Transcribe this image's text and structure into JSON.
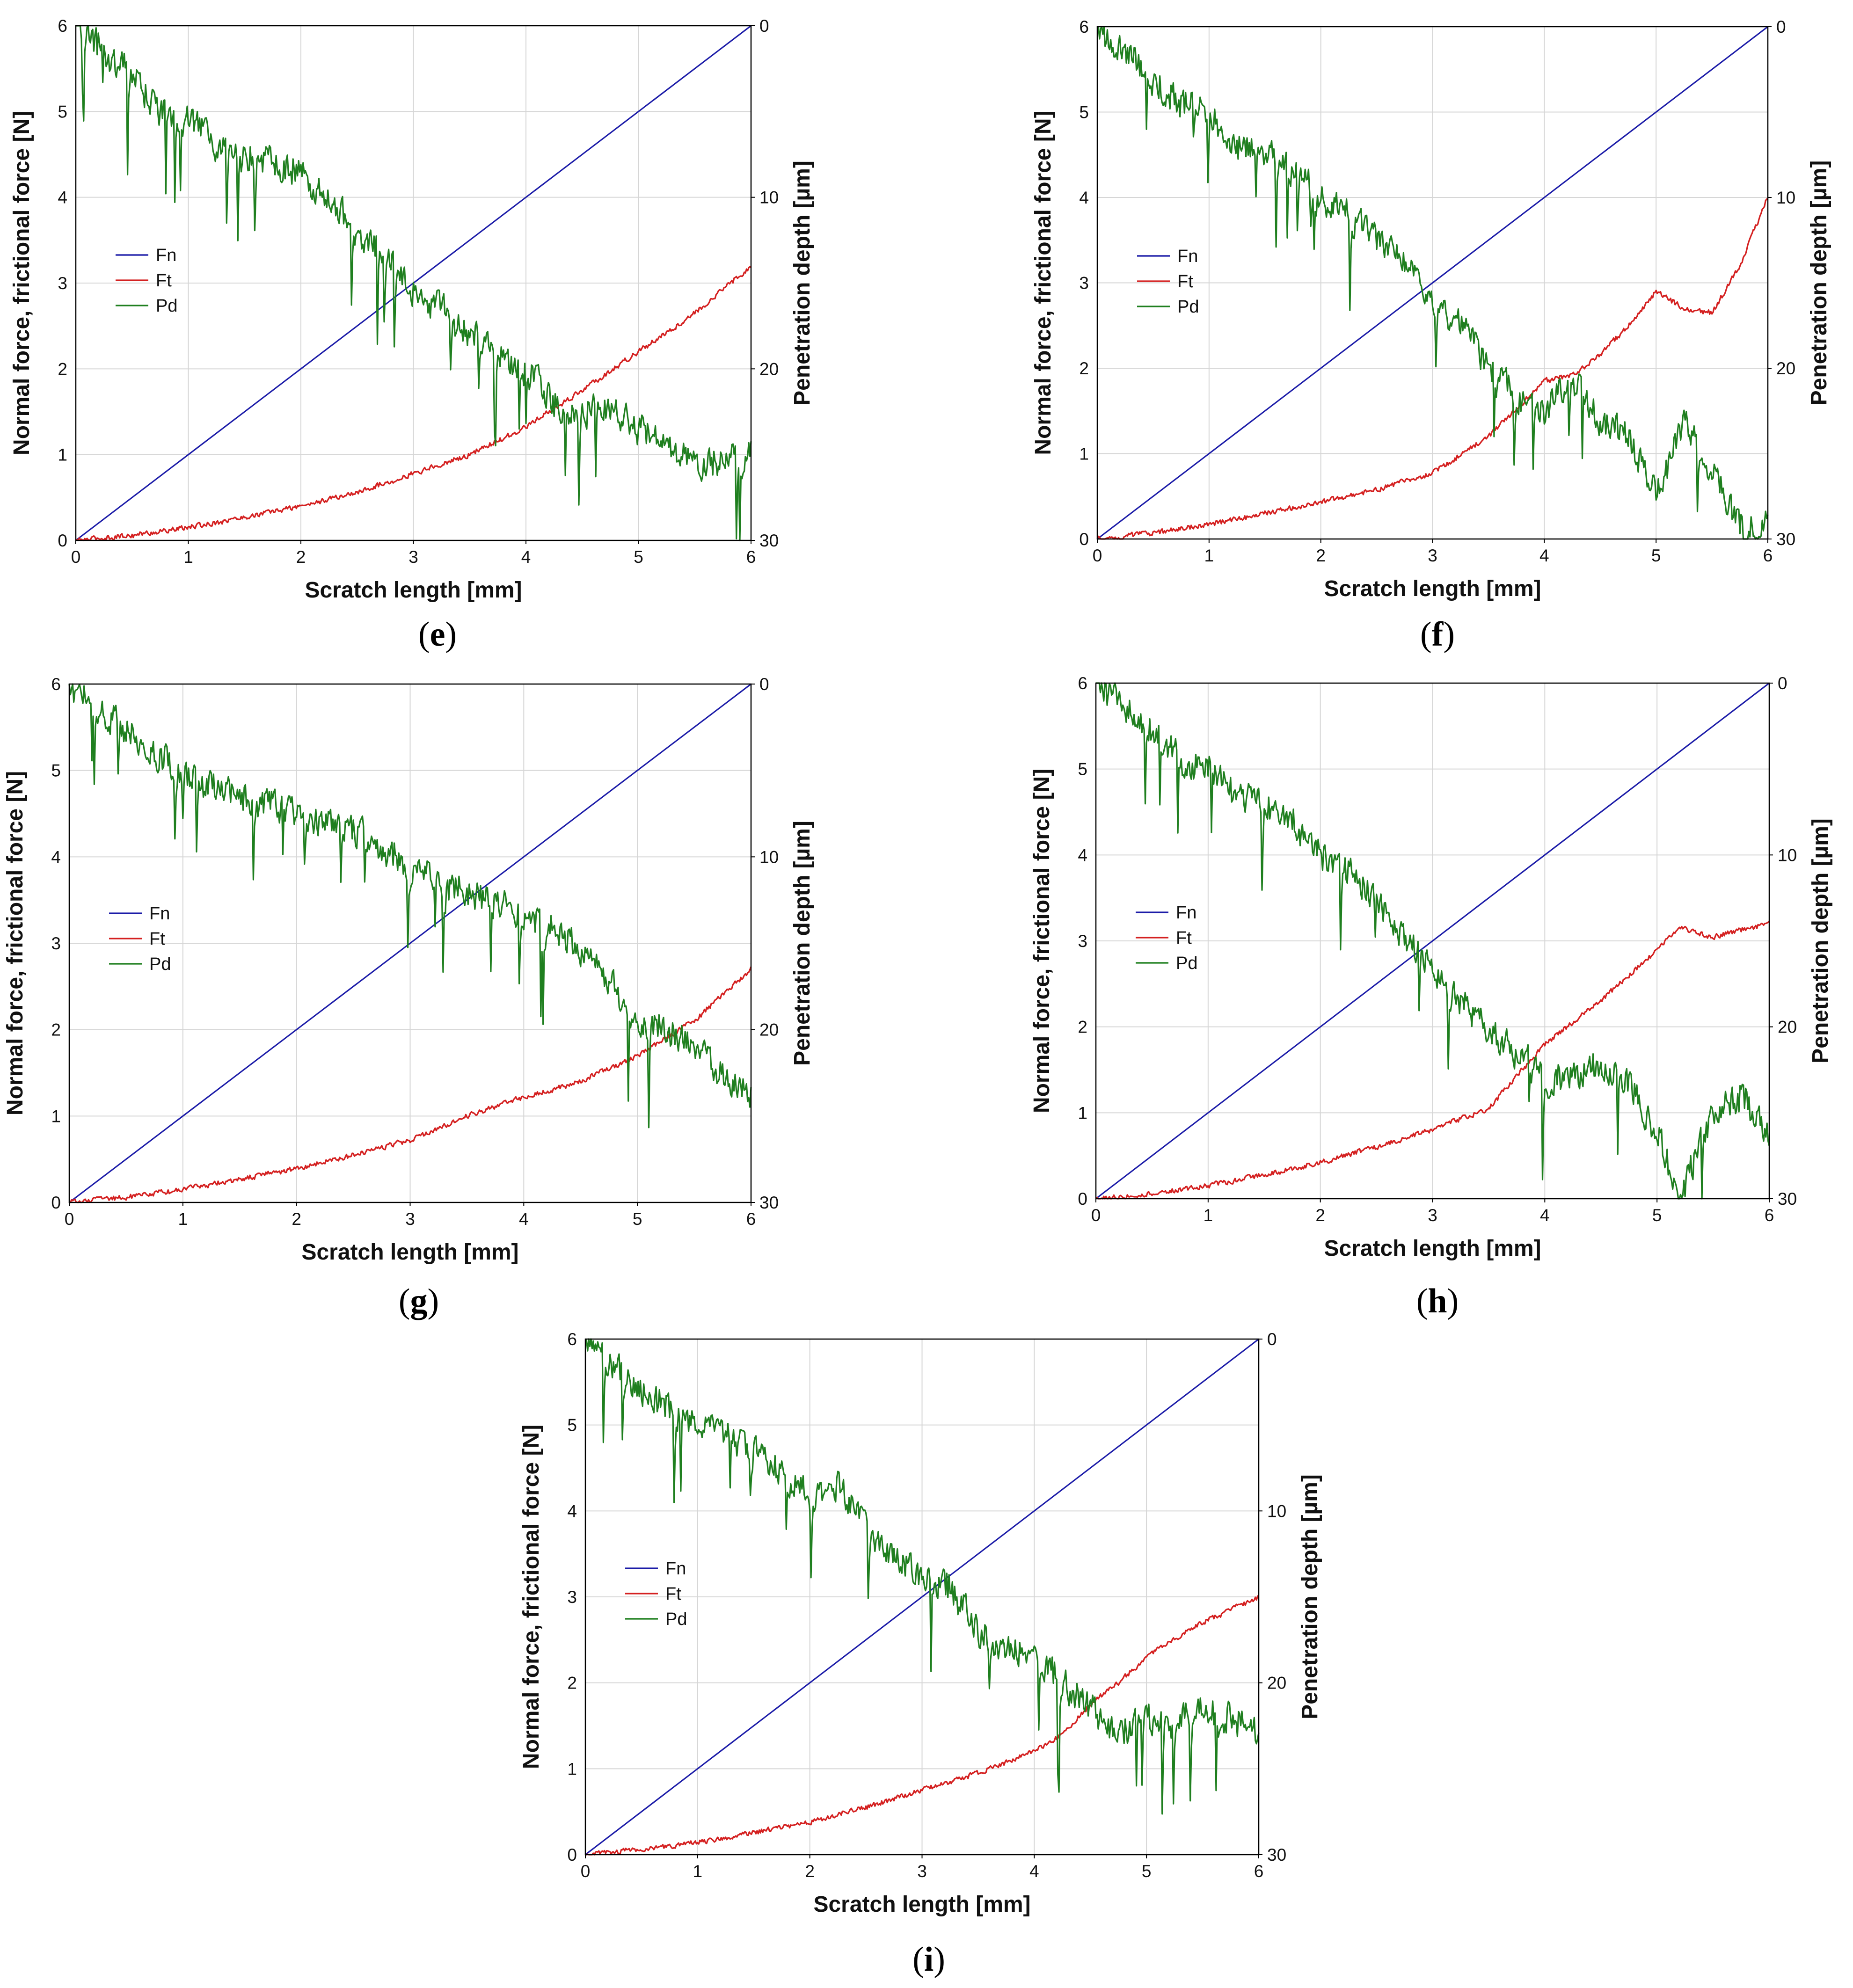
{
  "figure_panels": [
    "e",
    "f",
    "g",
    "h",
    "i"
  ],
  "colors": {
    "Fn": "#1c1ca8",
    "Ft": "#d42020",
    "Pd": "#1f7f1f",
    "grid": "#d6d6d6",
    "axis": "#000000"
  },
  "chart_data": [
    {
      "panel": "e",
      "caption": "e",
      "type": "line",
      "title": "",
      "xlabel": "Scratch length [mm]",
      "ylabel": "Normal force, frictional force [N]",
      "ylabel_right": "Penetration depth [µm]",
      "xlim": [
        0,
        6
      ],
      "ylim": [
        0,
        6
      ],
      "ylim_right": [
        0,
        30
      ],
      "right_axis_inverted": true,
      "xticks": [
        "0",
        "1",
        "2",
        "3",
        "4",
        "5",
        "6"
      ],
      "yticks": [
        "0",
        "1",
        "2",
        "3",
        "4",
        "5",
        "6"
      ],
      "yticks_right": [
        "0",
        "10",
        "20",
        "30"
      ],
      "grid": true,
      "legend_position": "middle-left",
      "legend": [
        "Fn",
        "Ft",
        "Pd"
      ],
      "series": [
        {
          "name": "Fn",
          "axis": "left",
          "x": [
            0,
            6
          ],
          "values": [
            0,
            6
          ]
        },
        {
          "name": "Ft",
          "axis": "left",
          "x": [
            0,
            0.5,
            1,
            1.5,
            2,
            2.5,
            3,
            3.5,
            4,
            4.5,
            5,
            5.5,
            6
          ],
          "values": [
            0,
            0.06,
            0.15,
            0.27,
            0.4,
            0.56,
            0.78,
            1.0,
            1.32,
            1.75,
            2.2,
            2.65,
            3.2
          ]
        },
        {
          "name": "Pd",
          "axis": "right",
          "x": [
            0,
            0.25,
            0.5,
            0.75,
            1,
            1.25,
            1.5,
            1.75,
            2,
            2.25,
            2.5,
            2.75,
            3,
            3.25,
            3.5,
            3.75,
            4,
            4.25,
            4.5,
            4.75,
            5,
            5.25,
            5.5,
            5.75,
            6
          ],
          "values": [
            0,
            1.5,
            3,
            5,
            5.5,
            7,
            7.5,
            8,
            8.5,
            10,
            12,
            13.5,
            15.5,
            16.5,
            18,
            19,
            20,
            22,
            22.5,
            22,
            23.5,
            24.5,
            25.5,
            25.5,
            25
          ]
        }
      ]
    },
    {
      "panel": "f",
      "caption": "f",
      "type": "line",
      "title": "",
      "xlabel": "Scratch length [mm]",
      "ylabel": "Normal force, frictional force [N]",
      "ylabel_right": "Penetration depth [µm]",
      "xlim": [
        0,
        6
      ],
      "ylim": [
        0,
        6
      ],
      "ylim_right": [
        0,
        30
      ],
      "right_axis_inverted": true,
      "xticks": [
        "0",
        "1",
        "2",
        "3",
        "4",
        "5",
        "6"
      ],
      "yticks": [
        "0",
        "1",
        "2",
        "3",
        "4",
        "5",
        "6"
      ],
      "yticks_right": [
        "0",
        "10",
        "20",
        "30"
      ],
      "grid": true,
      "legend_position": "middle-left",
      "legend": [
        "Fn",
        "Ft",
        "Pd"
      ],
      "series": [
        {
          "name": "Fn",
          "axis": "left",
          "x": [
            0,
            6
          ],
          "values": [
            0,
            6
          ]
        },
        {
          "name": "Ft",
          "axis": "left",
          "x": [
            0,
            0.5,
            1,
            1.5,
            2,
            2.5,
            3,
            3.5,
            4,
            4.25,
            4.5,
            4.75,
            5,
            5.25,
            5.5,
            5.75,
            6
          ],
          "values": [
            0,
            0.07,
            0.17,
            0.3,
            0.43,
            0.58,
            0.77,
            1.2,
            1.85,
            1.92,
            2.15,
            2.5,
            2.9,
            2.7,
            2.65,
            3.2,
            4.0
          ]
        },
        {
          "name": "Pd",
          "axis": "right",
          "x": [
            0,
            0.25,
            0.5,
            0.75,
            1,
            1.25,
            1.5,
            1.75,
            2,
            2.25,
            2.5,
            2.75,
            3,
            3.25,
            3.5,
            3.75,
            4,
            4.25,
            4.5,
            4.75,
            5,
            5.25,
            5.5,
            5.75,
            6
          ],
          "values": [
            0,
            1.5,
            3,
            4.5,
            5,
            7,
            7.5,
            8.5,
            10,
            11,
            12.5,
            14,
            16,
            17.5,
            20,
            21.5,
            22.5,
            20.5,
            23,
            24,
            27.5,
            23,
            26,
            29.5,
            29
          ]
        }
      ]
    },
    {
      "panel": "g",
      "caption": "g",
      "type": "line",
      "title": "",
      "xlabel": "Scratch length [mm]",
      "ylabel": "Normal force, frictional force [N]",
      "ylabel_right": "Penetration depth [µm]",
      "xlim": [
        0,
        6
      ],
      "ylim": [
        0,
        6
      ],
      "ylim_right": [
        0,
        30
      ],
      "right_axis_inverted": true,
      "xticks": [
        "0",
        "1",
        "2",
        "3",
        "4",
        "5",
        "6"
      ],
      "yticks": [
        "0",
        "1",
        "2",
        "3",
        "4",
        "5",
        "6"
      ],
      "yticks_right": [
        "0",
        "10",
        "20",
        "30"
      ],
      "grid": true,
      "legend_position": "middle-left",
      "legend": [
        "Fn",
        "Ft",
        "Pd"
      ],
      "series": [
        {
          "name": "Fn",
          "axis": "left",
          "x": [
            0,
            6
          ],
          "values": [
            0,
            6
          ]
        },
        {
          "name": "Ft",
          "axis": "left",
          "x": [
            0,
            0.5,
            1,
            1.5,
            2,
            2.5,
            3,
            3.5,
            4,
            4.5,
            5,
            5.25,
            5.5,
            5.75,
            6
          ],
          "values": [
            0,
            0.06,
            0.15,
            0.27,
            0.39,
            0.55,
            0.72,
            1.0,
            1.22,
            1.4,
            1.7,
            1.9,
            2.1,
            2.4,
            2.7
          ]
        },
        {
          "name": "Pd",
          "axis": "right",
          "x": [
            0,
            0.25,
            0.5,
            0.75,
            1,
            1.25,
            1.5,
            1.75,
            2,
            2.25,
            2.5,
            2.75,
            3,
            3.25,
            3.5,
            3.75,
            4,
            4.25,
            4.5,
            4.75,
            5,
            5.25,
            5.5,
            5.75,
            6
          ],
          "values": [
            0,
            1.5,
            2.5,
            4,
            5,
            6,
            6.5,
            7,
            7.5,
            8,
            8.5,
            9.5,
            10.5,
            11.5,
            12,
            12.5,
            13.5,
            14,
            15.5,
            17,
            19.5,
            20,
            21,
            22.5,
            24
          ]
        }
      ]
    },
    {
      "panel": "h",
      "caption": "h",
      "type": "line",
      "title": "",
      "xlabel": "Scratch length [mm]",
      "ylabel": "Normal force, frictional force [N]",
      "ylabel_right": "Penetration depth [µm]",
      "xlim": [
        0,
        6
      ],
      "ylim": [
        0,
        6
      ],
      "ylim_right": [
        0,
        30
      ],
      "right_axis_inverted": true,
      "xticks": [
        "0",
        "1",
        "2",
        "3",
        "4",
        "5",
        "6"
      ],
      "yticks": [
        "0",
        "1",
        "2",
        "3",
        "4",
        "5",
        "6"
      ],
      "yticks_right": [
        "0",
        "10",
        "20",
        "30"
      ],
      "grid": true,
      "legend_position": "middle-left",
      "legend": [
        "Fn",
        "Ft",
        "Pd"
      ],
      "series": [
        {
          "name": "Fn",
          "axis": "left",
          "x": [
            0,
            6
          ],
          "values": [
            0,
            6
          ]
        },
        {
          "name": "Ft",
          "axis": "left",
          "x": [
            0,
            0.5,
            1,
            1.5,
            2,
            2.5,
            3,
            3.5,
            4,
            4.5,
            5,
            5.2,
            5.5,
            6
          ],
          "values": [
            0,
            0.06,
            0.15,
            0.28,
            0.42,
            0.6,
            0.8,
            1.05,
            1.8,
            2.3,
            2.9,
            3.15,
            3.05,
            3.2
          ]
        },
        {
          "name": "Pd",
          "axis": "right",
          "x": [
            0,
            0.25,
            0.5,
            0.75,
            1,
            1.25,
            1.5,
            1.75,
            2,
            2.25,
            2.5,
            2.75,
            3,
            3.25,
            3.5,
            3.75,
            4,
            4.25,
            4.5,
            4.75,
            5,
            5.2,
            5.5,
            5.75,
            6
          ],
          "values": [
            0,
            1.5,
            2.5,
            4.5,
            5,
            6.5,
            7,
            8,
            10,
            11,
            12.5,
            15,
            16.5,
            18.5,
            20,
            21.5,
            23,
            23,
            22,
            23.5,
            26,
            30,
            25,
            24,
            26.5
          ]
        }
      ]
    },
    {
      "panel": "i",
      "caption": "i",
      "type": "line",
      "title": "",
      "xlabel": "Scratch length [mm]",
      "ylabel": "Normal force, frictional force [N]",
      "ylabel_right": "Penetration depth [µm]",
      "xlim": [
        0,
        6
      ],
      "ylim": [
        0,
        6
      ],
      "ylim_right": [
        0,
        30
      ],
      "right_axis_inverted": true,
      "xticks": [
        "0",
        "1",
        "2",
        "3",
        "4",
        "5",
        "6"
      ],
      "yticks": [
        "0",
        "1",
        "2",
        "3",
        "4",
        "5",
        "6"
      ],
      "yticks_right": [
        "0",
        "10",
        "20",
        "30"
      ],
      "grid": true,
      "legend_position": "middle-left",
      "legend": [
        "Fn",
        "Ft",
        "Pd"
      ],
      "series": [
        {
          "name": "Fn",
          "axis": "left",
          "x": [
            0,
            6
          ],
          "values": [
            0,
            6
          ]
        },
        {
          "name": "Ft",
          "axis": "left",
          "x": [
            0,
            0.5,
            1,
            1.5,
            2,
            2.5,
            3,
            3.5,
            4,
            4.25,
            4.5,
            4.75,
            5,
            5.5,
            6
          ],
          "values": [
            0,
            0.06,
            0.14,
            0.26,
            0.38,
            0.55,
            0.75,
            0.95,
            1.2,
            1.4,
            1.75,
            2.0,
            2.3,
            2.7,
            3.0
          ]
        },
        {
          "name": "Pd",
          "axis": "right",
          "x": [
            0,
            0.25,
            0.5,
            0.75,
            1,
            1.25,
            1.5,
            1.75,
            2,
            2.25,
            2.5,
            2.75,
            3,
            3.25,
            3.5,
            3.75,
            4,
            4.25,
            4.5,
            4.75,
            5,
            5.25,
            5.5,
            5.75,
            6
          ],
          "values": [
            0,
            1.5,
            3,
            4,
            5,
            5.5,
            6.5,
            7.5,
            9,
            8.5,
            11,
            12.5,
            14,
            14.5,
            17,
            18,
            18.5,
            20,
            21.5,
            23,
            22,
            22.5,
            21.5,
            22,
            23
          ]
        }
      ]
    }
  ]
}
